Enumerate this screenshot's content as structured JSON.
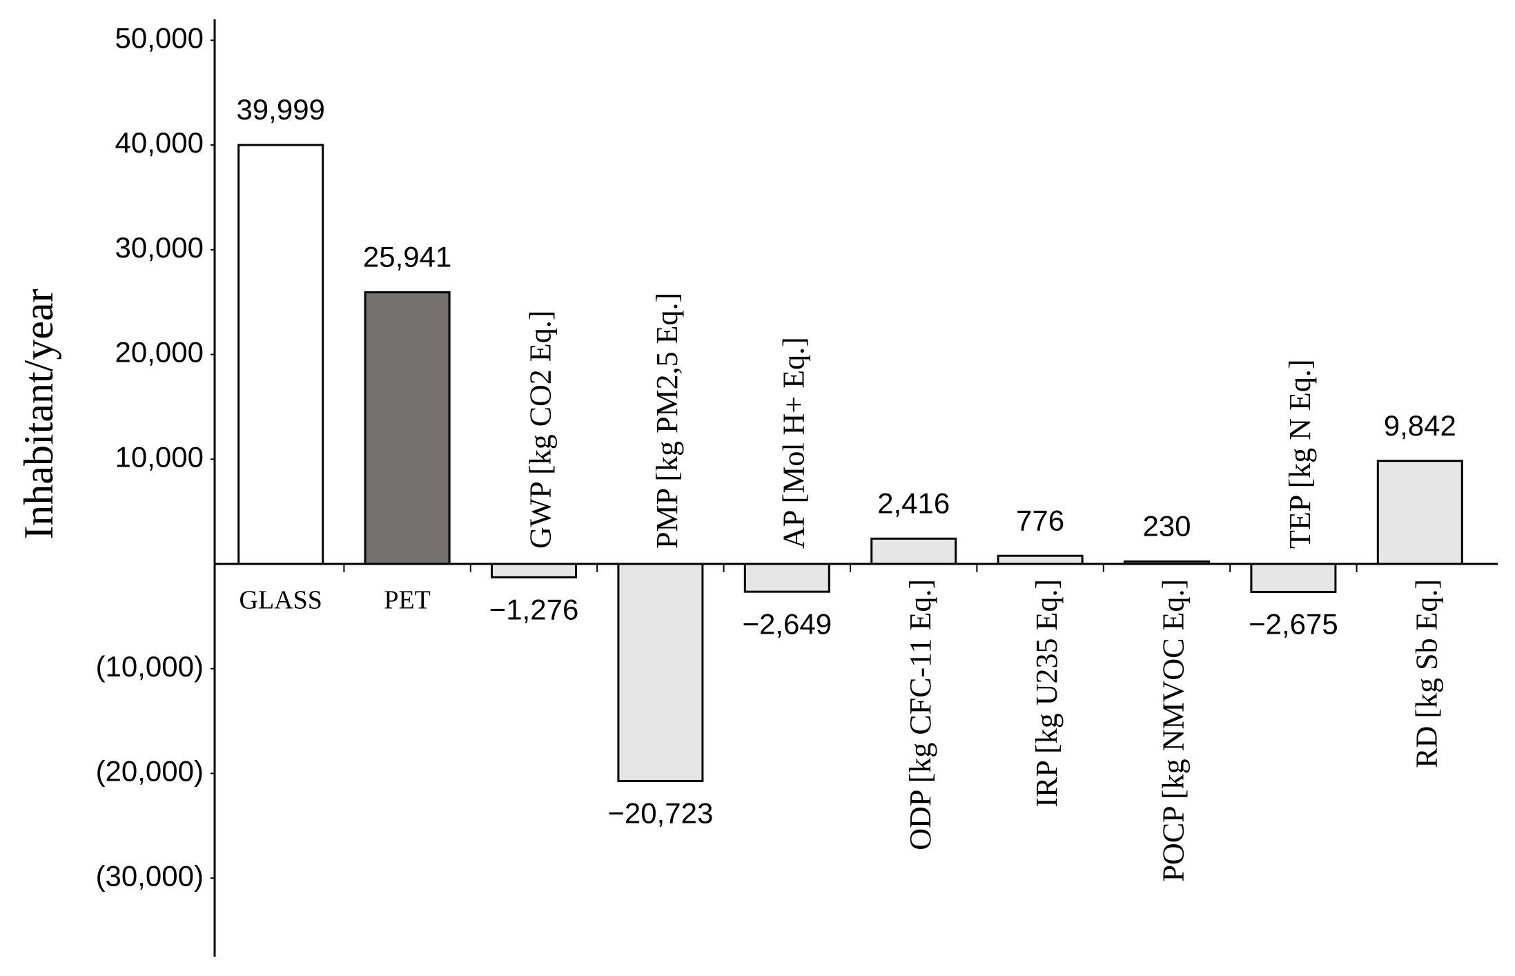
{
  "chart_data": {
    "type": "bar",
    "y_label": "Inhabitant/year",
    "categories": [
      "GLASS",
      "PET",
      "GWP [kg CO2 Eq.]",
      "PMP [kg PM2,5 Eq.]",
      "AP [Mol H+ Eq.]",
      "ODP [kg CFC-11 Eq.]",
      "IRP [kg U235 Eq.]",
      "POCP [kg NMVOC Eq.]",
      "TEP [kg N Eq.]",
      "RD [kg Sb Eq.]"
    ],
    "values": [
      39999,
      25941,
      -1276,
      -20723,
      -2649,
      2416,
      776,
      230,
      -2675,
      9842
    ],
    "value_labels": [
      "39,999",
      "25,941",
      "−1,276",
      "−20,723",
      "−2,649",
      "2,416",
      "776",
      "230",
      "−2,675",
      "9,842"
    ],
    "colors": [
      "#ffffff",
      "#767171",
      "#e7e6e6",
      "#e7e6e6",
      "#e7e6e6",
      "#e7e6e6",
      "#e7e6e6",
      "#e7e6e6",
      "#e7e6e6",
      "#e7e6e6"
    ],
    "ylim": [
      -37500,
      52000
    ],
    "yticks": [
      {
        "value": -30000,
        "label": "(30,000)"
      },
      {
        "value": -20000,
        "label": "(20,000)"
      },
      {
        "value": -10000,
        "label": "(10,000)"
      },
      {
        "value": 10000,
        "label": "10,000"
      },
      {
        "value": 20000,
        "label": "20,000"
      },
      {
        "value": 30000,
        "label": "30,000"
      },
      {
        "value": 40000,
        "label": "40,000"
      },
      {
        "value": 50000,
        "label": "50,000"
      }
    ],
    "grid": false
  }
}
